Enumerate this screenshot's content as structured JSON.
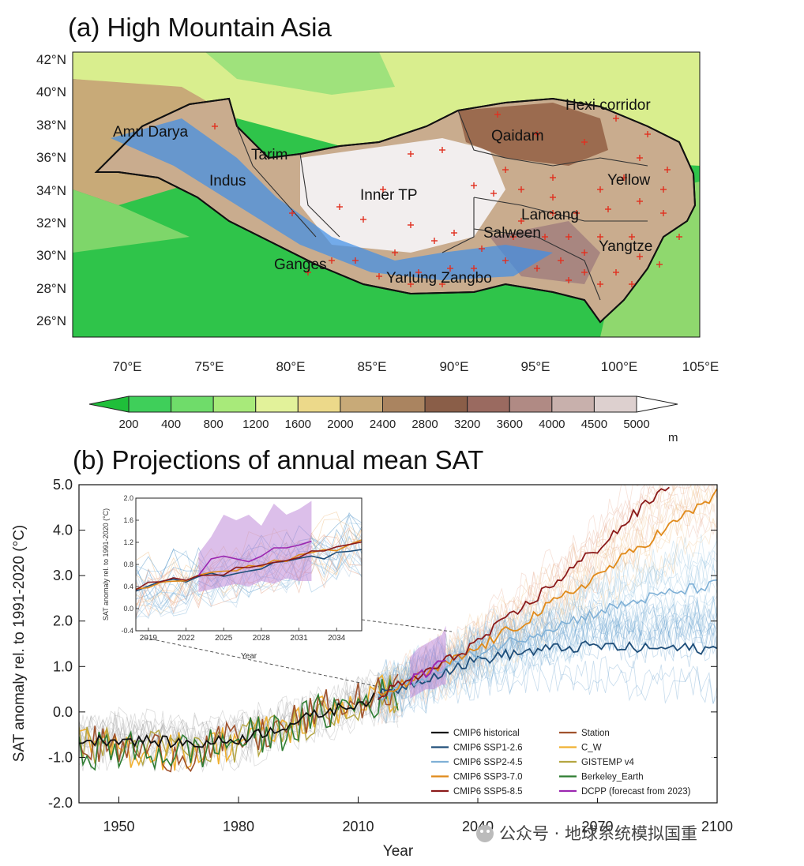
{
  "panel_a": {
    "title": "(a) High Mountain Asia",
    "lat_ticks": [
      "42°N",
      "40°N",
      "38°N",
      "36°N",
      "34°N",
      "32°N",
      "30°N",
      "28°N",
      "26°N"
    ],
    "lon_ticks": [
      "70°E",
      "75°E",
      "80°E",
      "85°E",
      "90°E",
      "95°E",
      "100°E",
      "105°E"
    ],
    "regions": [
      "Amu Darya",
      "Tarim",
      "Indus",
      "Inner TP",
      "Ganges",
      "Yarlung Zangbo",
      "Qaidam",
      "Hexi corridor",
      "Yellow",
      "Lancang",
      "Salween",
      "Yangtze"
    ],
    "colorbar": {
      "labels": [
        "200",
        "400",
        "800",
        "1200",
        "1600",
        "2000",
        "2400",
        "2800",
        "3200",
        "3600",
        "4000",
        "4500",
        "5000"
      ],
      "unit": "m",
      "colors": [
        "#1fbf3a",
        "#3fcf5a",
        "#6fdc6a",
        "#a8ea7a",
        "#e2f29a",
        "#ecd98a",
        "#c8aa78",
        "#aa8460",
        "#8a5e48",
        "#9a6a60",
        "#b08a84",
        "#c8b0ac",
        "#ddd0cf",
        "#ffffff"
      ]
    }
  },
  "panel_b": {
    "title": "(b) Projections of annual mean SAT",
    "inset_ylabel": "SAT anomaly rel. to 1991-2020 (°C)",
    "inset_xlabel": "Year",
    "legend": [
      {
        "label": "CMIP6 historical",
        "color": "#111111"
      },
      {
        "label": "CMIP6 SSP1-2.6",
        "color": "#1f4e79"
      },
      {
        "label": "CMIP6 SSP2-4.5",
        "color": "#7fb0d6"
      },
      {
        "label": "CMIP6 SSP3-7.0",
        "color": "#e08a1a"
      },
      {
        "label": "CMIP6 SSP5-8.5",
        "color": "#8b1a1a"
      },
      {
        "label": "Station",
        "color": "#a0522d"
      },
      {
        "label": "C_W",
        "color": "#f0b030"
      },
      {
        "label": "GISTEMP v4",
        "color": "#b5a642"
      },
      {
        "label": "Berkeley_Earth",
        "color": "#2e7d32"
      },
      {
        "label": "DCPP (forecast from 2023)",
        "color": "#9c27b0"
      }
    ]
  },
  "watermark": "公众号 · 地球系统模拟国重",
  "chart_data": [
    {
      "type": "heatmap",
      "title": "(a) High Mountain Asia",
      "xlabel": "",
      "ylabel": "",
      "x_ticks": [
        "70°E",
        "75°E",
        "80°E",
        "85°E",
        "90°E",
        "95°E",
        "100°E",
        "105°E"
      ],
      "y_ticks": [
        "26°N",
        "28°N",
        "30°N",
        "32°N",
        "34°N",
        "36°N",
        "38°N",
        "40°N",
        "42°N"
      ],
      "xlim": [
        66.5,
        105
      ],
      "ylim": [
        25,
        43
      ],
      "colorbar_levels": [
        200,
        400,
        800,
        1200,
        1600,
        2000,
        2400,
        2800,
        3200,
        3600,
        4000,
        4500,
        5000
      ],
      "colorbar_unit": "m",
      "region_labels": [
        "Amu Darya",
        "Tarim",
        "Indus",
        "Inner TP",
        "Ganges",
        "Yarlung Zangbo",
        "Qaidam",
        "Hexi corridor",
        "Yellow",
        "Lancang",
        "Salween",
        "Yangtze"
      ]
    },
    {
      "type": "line",
      "title": "(b) Projections of annual mean SAT",
      "xlabel": "Year",
      "ylabel": "SAT anomaly rel. to 1991-2020 (°C)",
      "xlim": [
        1940,
        2100
      ],
      "ylim": [
        -2.0,
        5.0
      ],
      "x_ticks": [
        1950,
        1980,
        2010,
        2040,
        2070,
        2100
      ],
      "y_ticks": [
        "-2.0",
        "-1.0",
        "0.0",
        "1.0",
        "2.0",
        "3.0",
        "4.0",
        "5.0"
      ],
      "legend_position": "bottom-right",
      "series": [
        {
          "name": "CMIP6 historical",
          "x": [
            1940,
            1950,
            1960,
            1970,
            1980,
            1990,
            2000,
            2010,
            2014
          ],
          "values": [
            -0.65,
            -0.6,
            -0.65,
            -0.7,
            -0.6,
            -0.35,
            -0.05,
            0.2,
            0.3
          ]
        },
        {
          "name": "CMIP6 SSP1-2.6",
          "x": [
            2015,
            2030,
            2040,
            2050,
            2060,
            2070,
            2080,
            2090,
            2100
          ],
          "values": [
            0.35,
            0.85,
            1.15,
            1.3,
            1.4,
            1.45,
            1.4,
            1.4,
            1.38
          ]
        },
        {
          "name": "CMIP6 SSP2-4.5",
          "x": [
            2015,
            2030,
            2040,
            2050,
            2060,
            2070,
            2080,
            2090,
            2100
          ],
          "values": [
            0.35,
            0.9,
            1.3,
            1.6,
            1.9,
            2.2,
            2.45,
            2.65,
            2.8
          ]
        },
        {
          "name": "CMIP6 SSP3-7.0",
          "x": [
            2015,
            2030,
            2040,
            2050,
            2060,
            2070,
            2080,
            2090,
            2100
          ],
          "values": [
            0.35,
            0.95,
            1.4,
            1.9,
            2.45,
            3.0,
            3.6,
            4.2,
            4.8
          ]
        },
        {
          "name": "CMIP6 SSP5-8.5",
          "x": [
            2015,
            2030,
            2040,
            2050,
            2060,
            2070,
            2080,
            2088
          ],
          "values": [
            0.35,
            1.0,
            1.55,
            2.2,
            2.9,
            3.6,
            4.4,
            5.0
          ]
        },
        {
          "name": "Station",
          "x": [
            1940,
            1950,
            1960,
            1970,
            1980,
            1990,
            2000,
            2010,
            2020
          ],
          "values": [
            -0.7,
            -0.8,
            -0.85,
            -0.9,
            -0.6,
            -0.4,
            0.0,
            0.25,
            0.4
          ]
        },
        {
          "name": "C_W",
          "x": [
            1940,
            1950,
            1960,
            1970,
            1980,
            1990,
            2000,
            2010,
            2020
          ],
          "values": [
            -0.75,
            -0.8,
            -0.85,
            -0.85,
            -0.6,
            -0.4,
            -0.05,
            0.3,
            0.45
          ]
        },
        {
          "name": "GISTEMP v4",
          "x": [
            1940,
            1950,
            1960,
            1970,
            1980,
            1990,
            2000,
            2010,
            2020
          ],
          "values": [
            -0.7,
            -0.75,
            -0.8,
            -0.85,
            -0.65,
            -0.45,
            -0.05,
            0.25,
            0.4
          ]
        },
        {
          "name": "Berkeley_Earth",
          "x": [
            1940,
            1950,
            1960,
            1970,
            1980,
            1990,
            2000,
            2010,
            2020
          ],
          "values": [
            -0.8,
            -0.85,
            -0.9,
            -0.85,
            -0.6,
            -0.45,
            -0.05,
            0.2,
            0.4
          ]
        },
        {
          "name": "DCPP (forecast from 2023)",
          "x": [
            2023,
            2025,
            2027,
            2029,
            2031,
            2032
          ],
          "values": [
            0.65,
            0.9,
            0.8,
            1.0,
            1.1,
            1.2
          ]
        }
      ]
    },
    {
      "type": "line",
      "title": "",
      "xlabel": "Year",
      "ylabel": "SAT anomaly rel. to 1991-2020 (°C)",
      "xlim": [
        2018,
        2036
      ],
      "ylim": [
        -0.4,
        2.0
      ],
      "x_ticks": [
        2019,
        2022,
        2025,
        2028,
        2031,
        2034
      ],
      "y_ticks": [
        "-0.4",
        "0.0",
        "0.4",
        "0.8",
        "1.2",
        "1.6",
        "2.0"
      ],
      "series": [
        {
          "name": "CMIP6 SSP1-2.6",
          "x": [
            2018,
            2021,
            2024,
            2027,
            2030,
            2033,
            2036
          ],
          "values": [
            0.35,
            0.5,
            0.6,
            0.7,
            0.85,
            0.95,
            1.05
          ]
        },
        {
          "name": "CMIP6 SSP3-7.0",
          "x": [
            2018,
            2021,
            2024,
            2027,
            2030,
            2033,
            2036
          ],
          "values": [
            0.35,
            0.5,
            0.6,
            0.75,
            0.9,
            1.05,
            1.2
          ]
        },
        {
          "name": "CMIP6 SSP5-8.5",
          "x": [
            2018,
            2021,
            2024,
            2027,
            2030,
            2033,
            2036
          ],
          "values": [
            0.38,
            0.5,
            0.58,
            0.8,
            0.9,
            1.1,
            1.18
          ]
        },
        {
          "name": "DCPP (forecast from 2023)",
          "x": [
            2023,
            2024,
            2025,
            2026,
            2027,
            2028,
            2029,
            2030,
            2031,
            2032
          ],
          "values": [
            0.6,
            0.9,
            0.95,
            0.9,
            0.85,
            0.95,
            1.1,
            1.1,
            1.15,
            1.22
          ]
        }
      ]
    }
  ]
}
